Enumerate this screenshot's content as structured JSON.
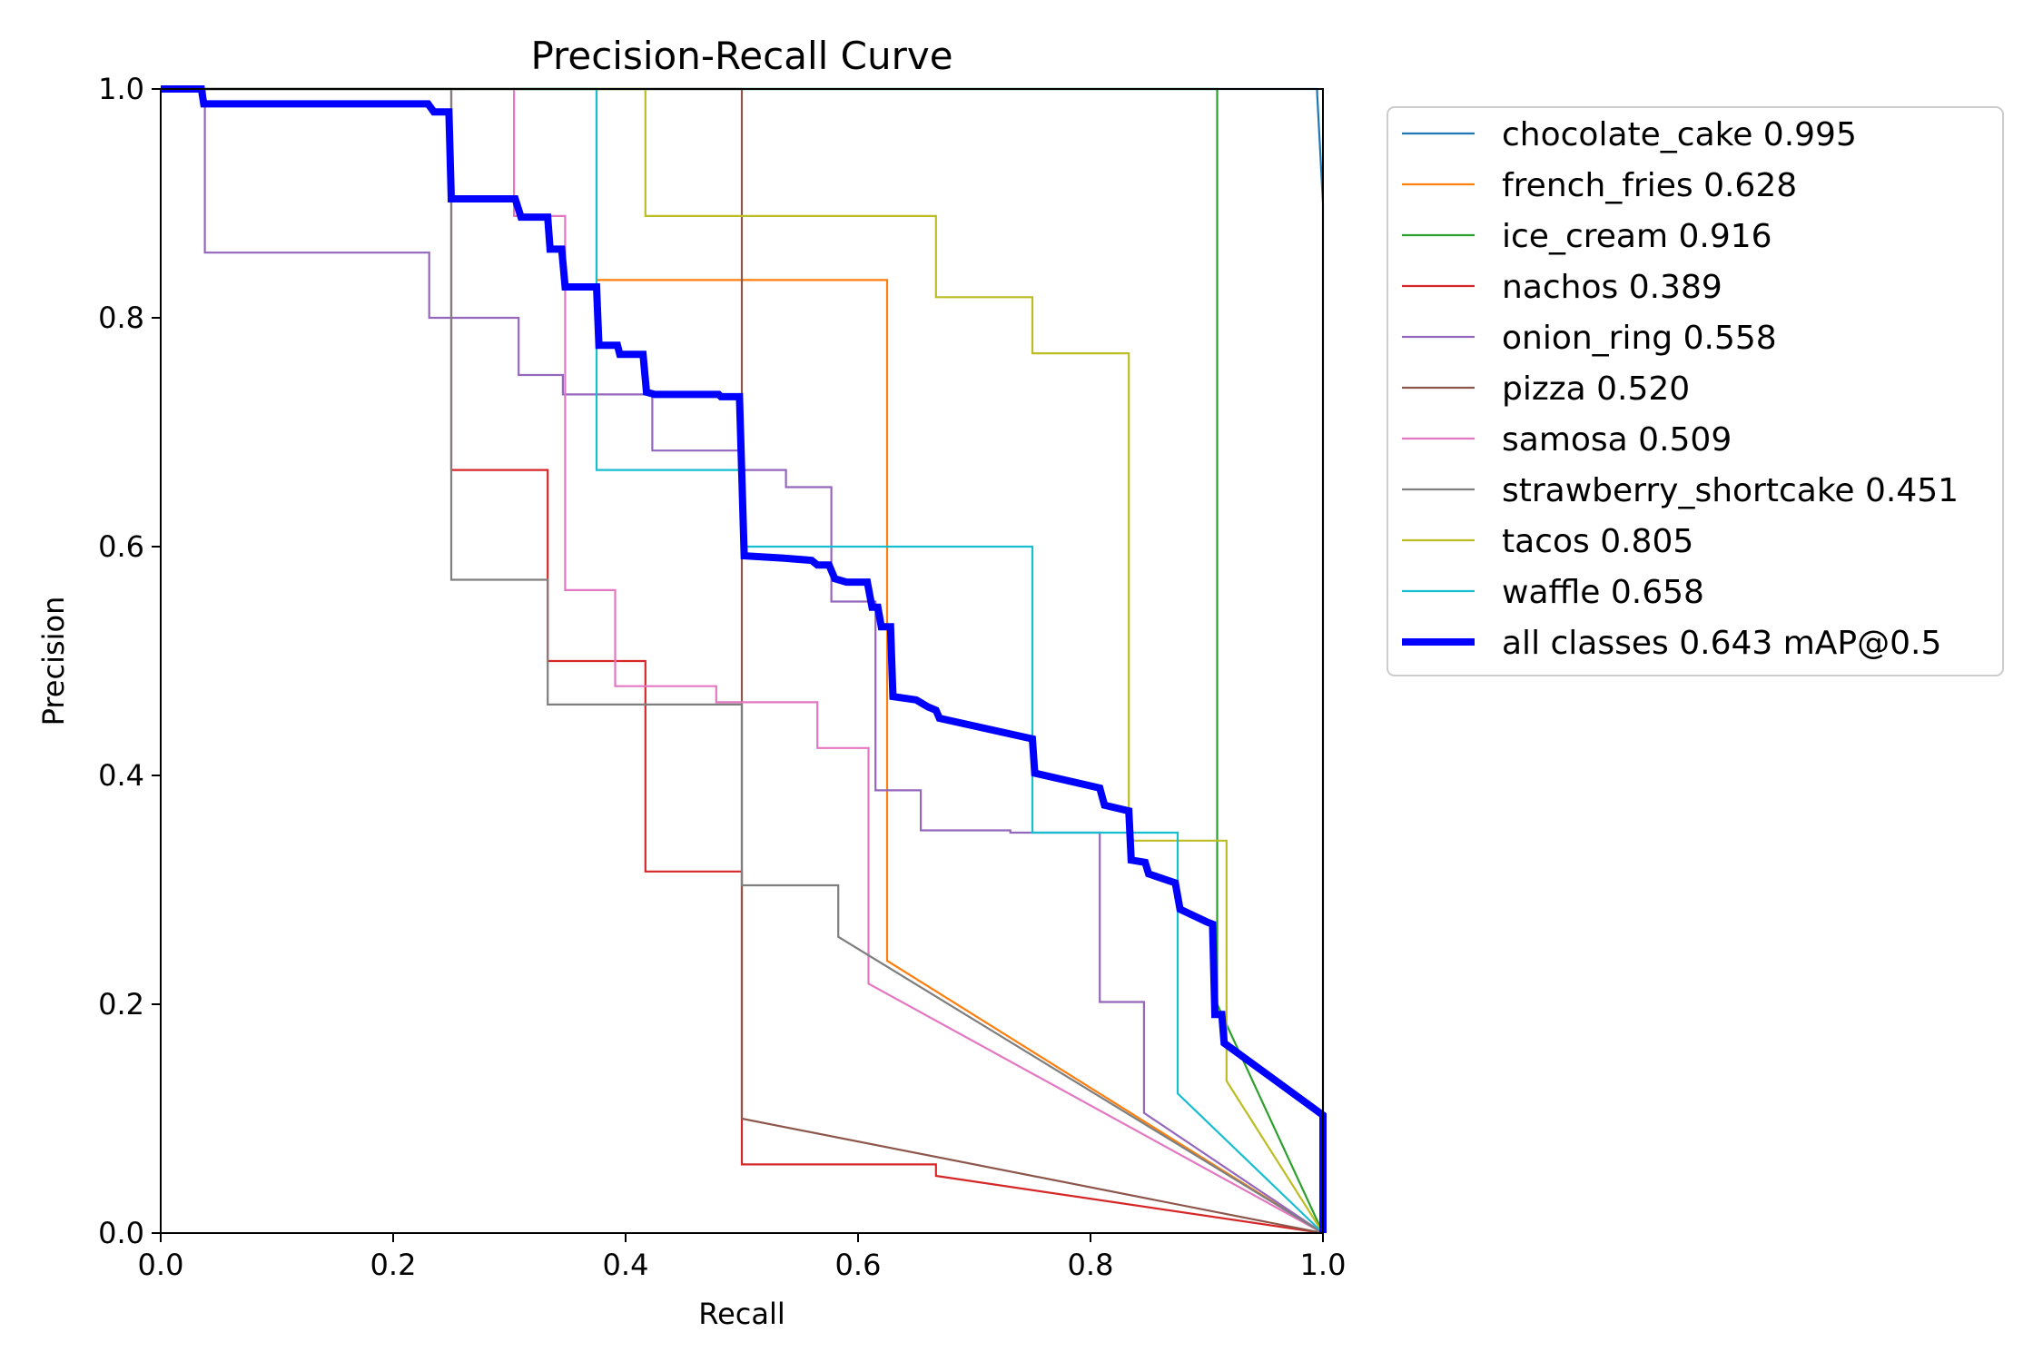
{
  "chart_data": {
    "type": "line",
    "title": "Precision-Recall Curve",
    "xlabel": "Recall",
    "ylabel": "Precision",
    "xlim": [
      0.0,
      1.0
    ],
    "ylim": [
      0.0,
      1.0
    ],
    "xticks": [
      "0.0",
      "0.2",
      "0.4",
      "0.6",
      "0.8",
      "1.0"
    ],
    "yticks": [
      "0.0",
      "0.2",
      "0.4",
      "0.6",
      "0.8",
      "1.0"
    ],
    "grid": false,
    "legend_position": "outside-right-top",
    "series": [
      {
        "name": "chocolate_cake 0.995",
        "color": "#1f77b4",
        "highlight": false,
        "points": [
          [
            0,
            1
          ],
          [
            0.995,
            1
          ],
          [
            0.995,
            0.996
          ],
          [
            1,
            0.9
          ],
          [
            1,
            0
          ]
        ]
      },
      {
        "name": "french_fries 0.628",
        "color": "#ff7f0e",
        "highlight": false,
        "points": [
          [
            0,
            1
          ],
          [
            0.375,
            1
          ],
          [
            0.375,
            0.833
          ],
          [
            0.625,
            0.833
          ],
          [
            0.625,
            0.238
          ],
          [
            1,
            0
          ]
        ]
      },
      {
        "name": "ice_cream 0.916",
        "color": "#2ca02c",
        "highlight": false,
        "points": [
          [
            0,
            1
          ],
          [
            0.909,
            1
          ],
          [
            0.909,
            0.2
          ],
          [
            1,
            0
          ]
        ]
      },
      {
        "name": "nachos 0.389",
        "color": "#d62728",
        "highlight": false,
        "points": [
          [
            0,
            1
          ],
          [
            0.25,
            1
          ],
          [
            0.25,
            0.667
          ],
          [
            0.333,
            0.667
          ],
          [
            0.333,
            0.5
          ],
          [
            0.417,
            0.5
          ],
          [
            0.417,
            0.316
          ],
          [
            0.5,
            0.316
          ],
          [
            0.5,
            0.06
          ],
          [
            0.667,
            0.06
          ],
          [
            0.667,
            0.05
          ],
          [
            1,
            0
          ]
        ]
      },
      {
        "name": "onion_ring 0.558",
        "color": "#9467bd",
        "highlight": false,
        "points": [
          [
            0,
            1
          ],
          [
            0.038,
            1
          ],
          [
            0.038,
            0.857
          ],
          [
            0.231,
            0.857
          ],
          [
            0.231,
            0.8
          ],
          [
            0.308,
            0.8
          ],
          [
            0.308,
            0.75
          ],
          [
            0.346,
            0.75
          ],
          [
            0.346,
            0.733
          ],
          [
            0.423,
            0.733
          ],
          [
            0.423,
            0.684
          ],
          [
            0.5,
            0.684
          ],
          [
            0.5,
            0.667
          ],
          [
            0.538,
            0.667
          ],
          [
            0.538,
            0.652
          ],
          [
            0.577,
            0.652
          ],
          [
            0.577,
            0.552
          ],
          [
            0.615,
            0.552
          ],
          [
            0.615,
            0.387
          ],
          [
            0.654,
            0.387
          ],
          [
            0.654,
            0.352
          ],
          [
            0.731,
            0.352
          ],
          [
            0.731,
            0.35
          ],
          [
            0.808,
            0.35
          ],
          [
            0.808,
            0.202
          ],
          [
            0.846,
            0.202
          ],
          [
            0.846,
            0.105
          ],
          [
            1,
            0
          ]
        ]
      },
      {
        "name": "pizza 0.520",
        "color": "#8c564b",
        "highlight": false,
        "points": [
          [
            0,
            1
          ],
          [
            0.5,
            1
          ],
          [
            0.5,
            0.1
          ],
          [
            1,
            0
          ]
        ]
      },
      {
        "name": "samosa 0.509",
        "color": "#e377c2",
        "highlight": false,
        "points": [
          [
            0,
            1
          ],
          [
            0.304,
            1
          ],
          [
            0.304,
            0.889
          ],
          [
            0.348,
            0.889
          ],
          [
            0.348,
            0.562
          ],
          [
            0.391,
            0.562
          ],
          [
            0.391,
            0.478
          ],
          [
            0.478,
            0.478
          ],
          [
            0.478,
            0.464
          ],
          [
            0.565,
            0.464
          ],
          [
            0.565,
            0.424
          ],
          [
            0.609,
            0.424
          ],
          [
            0.609,
            0.218
          ],
          [
            1,
            0
          ]
        ]
      },
      {
        "name": "strawberry_shortcake 0.451",
        "color": "#7f7f7f",
        "highlight": false,
        "points": [
          [
            0,
            1
          ],
          [
            0.25,
            1
          ],
          [
            0.25,
            0.571
          ],
          [
            0.333,
            0.571
          ],
          [
            0.333,
            0.462
          ],
          [
            0.5,
            0.462
          ],
          [
            0.5,
            0.304
          ],
          [
            0.583,
            0.304
          ],
          [
            0.583,
            0.259
          ],
          [
            1,
            0
          ]
        ]
      },
      {
        "name": "tacos 0.805",
        "color": "#bcbd22",
        "highlight": false,
        "points": [
          [
            0,
            1
          ],
          [
            0.417,
            1
          ],
          [
            0.417,
            0.889
          ],
          [
            0.667,
            0.889
          ],
          [
            0.667,
            0.818
          ],
          [
            0.75,
            0.818
          ],
          [
            0.75,
            0.769
          ],
          [
            0.833,
            0.769
          ],
          [
            0.833,
            0.343
          ],
          [
            0.917,
            0.343
          ],
          [
            0.917,
            0.133
          ],
          [
            1,
            0
          ]
        ]
      },
      {
        "name": "waffle 0.658",
        "color": "#17becf",
        "highlight": false,
        "points": [
          [
            0,
            1
          ],
          [
            0.375,
            1
          ],
          [
            0.375,
            0.667
          ],
          [
            0.5,
            0.667
          ],
          [
            0.5,
            0.6
          ],
          [
            0.75,
            0.6
          ],
          [
            0.75,
            0.35
          ],
          [
            0.875,
            0.35
          ],
          [
            0.875,
            0.122
          ],
          [
            1,
            0
          ]
        ]
      },
      {
        "name": "all classes 0.643 mAP@0.5",
        "color": "#0000ff",
        "highlight": true,
        "points": [
          [
            0,
            1
          ],
          [
            0.035,
            1
          ],
          [
            0.037,
            0.987
          ],
          [
            0.23,
            0.987
          ],
          [
            0.235,
            0.98
          ],
          [
            0.248,
            0.98
          ],
          [
            0.25,
            0.904
          ],
          [
            0.305,
            0.904
          ],
          [
            0.31,
            0.888
          ],
          [
            0.333,
            0.888
          ],
          [
            0.335,
            0.86
          ],
          [
            0.345,
            0.86
          ],
          [
            0.348,
            0.827
          ],
          [
            0.375,
            0.827
          ],
          [
            0.377,
            0.776
          ],
          [
            0.393,
            0.776
          ],
          [
            0.395,
            0.768
          ],
          [
            0.415,
            0.768
          ],
          [
            0.418,
            0.735
          ],
          [
            0.425,
            0.733
          ],
          [
            0.48,
            0.733
          ],
          [
            0.482,
            0.731
          ],
          [
            0.498,
            0.731
          ],
          [
            0.502,
            0.592
          ],
          [
            0.535,
            0.59
          ],
          [
            0.56,
            0.588
          ],
          [
            0.565,
            0.584
          ],
          [
            0.575,
            0.584
          ],
          [
            0.58,
            0.572
          ],
          [
            0.59,
            0.569
          ],
          [
            0.608,
            0.569
          ],
          [
            0.612,
            0.547
          ],
          [
            0.617,
            0.547
          ],
          [
            0.62,
            0.53
          ],
          [
            0.628,
            0.53
          ],
          [
            0.63,
            0.469
          ],
          [
            0.65,
            0.466
          ],
          [
            0.66,
            0.46
          ],
          [
            0.667,
            0.457
          ],
          [
            0.67,
            0.45
          ],
          [
            0.75,
            0.432
          ],
          [
            0.752,
            0.402
          ],
          [
            0.808,
            0.389
          ],
          [
            0.812,
            0.374
          ],
          [
            0.833,
            0.369
          ],
          [
            0.835,
            0.326
          ],
          [
            0.847,
            0.324
          ],
          [
            0.85,
            0.314
          ],
          [
            0.873,
            0.306
          ],
          [
            0.877,
            0.283
          ],
          [
            0.9,
            0.272
          ],
          [
            0.905,
            0.27
          ],
          [
            0.907,
            0.191
          ],
          [
            0.913,
            0.191
          ],
          [
            0.915,
            0.166
          ],
          [
            0.93,
            0.155
          ],
          [
            1,
            0.103
          ],
          [
            1,
            0
          ]
        ]
      }
    ]
  }
}
